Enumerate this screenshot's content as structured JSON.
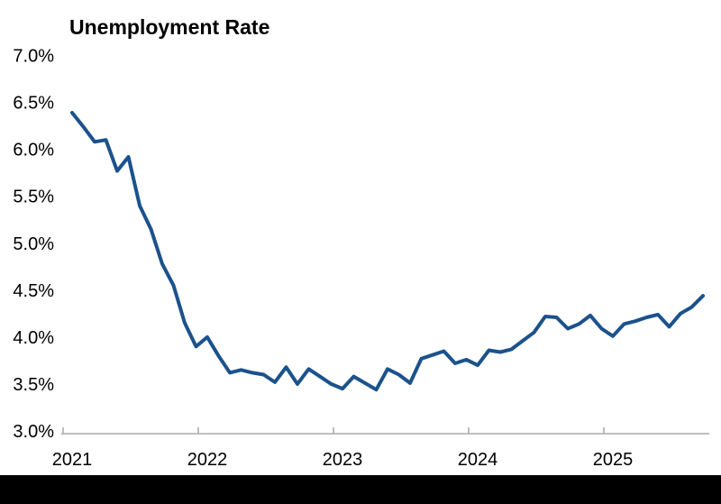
{
  "page": {
    "background": "#FFFFFF",
    "bottom_bar_color": "#000000"
  },
  "chart_data": {
    "type": "line",
    "title": "Unemployment Rate",
    "series_name": "Unemployment Rate",
    "unit": "percent",
    "grid": false,
    "legend": false,
    "line_color": "#1B528C",
    "axis_color": "#A8A8A8",
    "text_color": "#000000",
    "ylim": [
      3.0,
      7.0
    ],
    "y_tick_values": [
      7.0,
      6.5,
      6.0,
      5.5,
      5.0,
      4.5,
      4.0,
      3.5,
      3.0
    ],
    "y_tick_labels": [
      "7.0%",
      "6.5%",
      "6.0%",
      "5.5%",
      "5.0%",
      "4.5%",
      "4.0%",
      "3.5%",
      "3.0%"
    ],
    "x_tick_labels": [
      "2021",
      "2022",
      "2023",
      "2024",
      "2025"
    ],
    "x": [
      "2021-01",
      "2021-02",
      "2021-03",
      "2021-04",
      "2021-05",
      "2021-06",
      "2021-07",
      "2021-08",
      "2021-09",
      "2021-10",
      "2021-11",
      "2021-12",
      "2022-01",
      "2022-02",
      "2022-03",
      "2022-04",
      "2022-05",
      "2022-06",
      "2022-07",
      "2022-08",
      "2022-09",
      "2022-10",
      "2022-11",
      "2022-12",
      "2023-01",
      "2023-02",
      "2023-03",
      "2023-04",
      "2023-05",
      "2023-06",
      "2023-07",
      "2023-08",
      "2023-09",
      "2023-10",
      "2023-11",
      "2023-12",
      "2024-01",
      "2024-02",
      "2024-03",
      "2024-04",
      "2024-05",
      "2024-06",
      "2024-07",
      "2024-08",
      "2024-09",
      "2024-10",
      "2024-11",
      "2024-12",
      "2025-01",
      "2025-02",
      "2025-03",
      "2025-04",
      "2025-05",
      "2025-06",
      "2025-07",
      "2025-08",
      "2025-09"
    ],
    "values": [
      6.39,
      6.24,
      6.08,
      6.1,
      5.77,
      5.92,
      5.4,
      5.15,
      4.78,
      4.55,
      4.15,
      3.9,
      4.0,
      3.8,
      3.62,
      3.65,
      3.62,
      3.6,
      3.52,
      3.68,
      3.5,
      3.66,
      3.58,
      3.5,
      3.45,
      3.58,
      3.51,
      3.44,
      3.66,
      3.6,
      3.51,
      3.77,
      3.81,
      3.85,
      3.72,
      3.76,
      3.7,
      3.86,
      3.84,
      3.87,
      3.96,
      4.05,
      4.22,
      4.21,
      4.09,
      4.14,
      4.23,
      4.09,
      4.01,
      4.14,
      4.17,
      4.21,
      4.24,
      4.11,
      4.25,
      4.32,
      4.44
    ]
  }
}
